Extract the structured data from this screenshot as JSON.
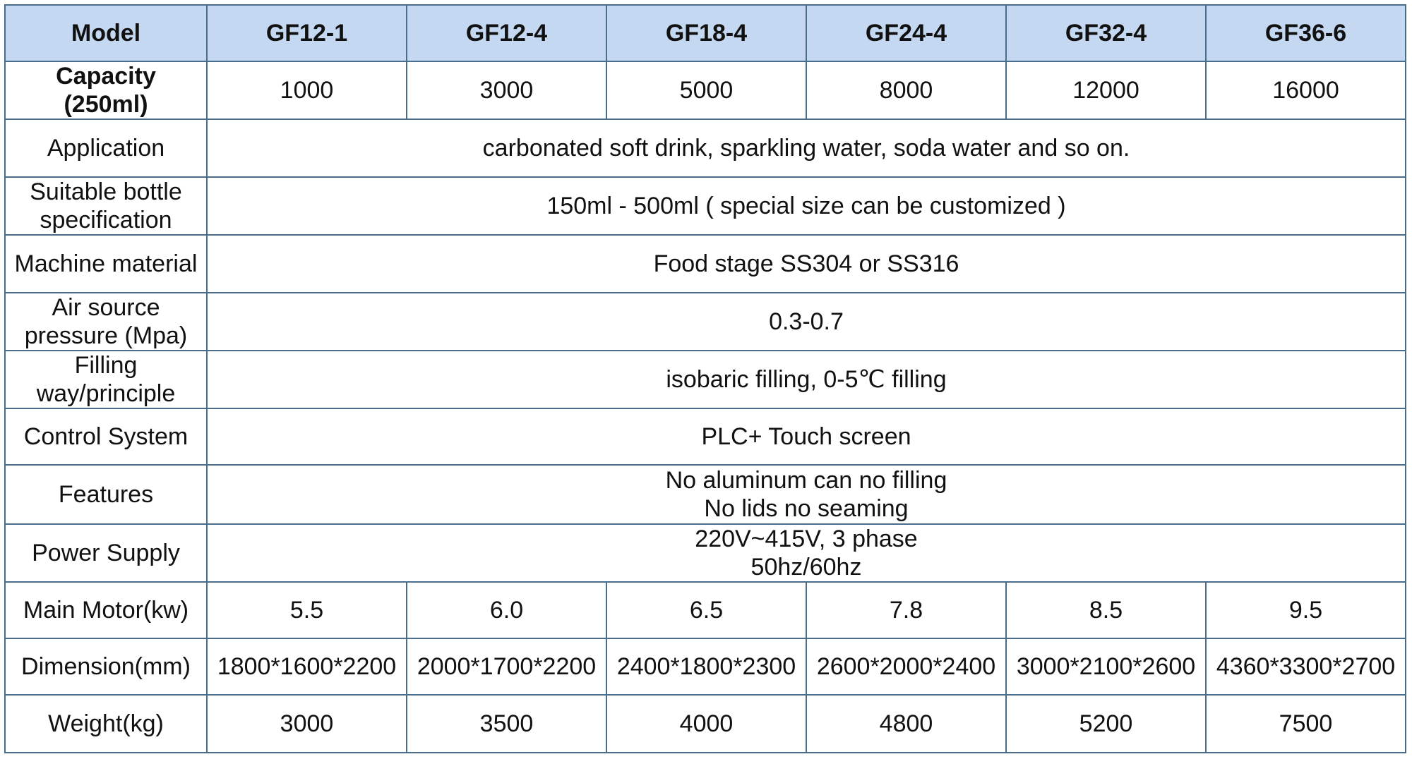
{
  "header": {
    "label": "Model",
    "models": [
      "GF12-1",
      "GF12-4",
      "GF18-4",
      "GF24-4",
      "GF32-4",
      "GF36-6"
    ]
  },
  "capacity": {
    "label_line1": "Capacity",
    "label_line2": "(250ml)",
    "values": [
      "1000",
      "3000",
      "5000",
      "8000",
      "12000",
      "16000"
    ]
  },
  "application": {
    "label": "Application",
    "value": "carbonated soft drink, sparkling water, soda water and so on."
  },
  "bottle_spec": {
    "label": "Suitable bottle specification",
    "value": "150ml - 500ml ( special size can be customized )"
  },
  "machine_material": {
    "label": "Machine material",
    "value": "Food stage SS304 or SS316"
  },
  "air_pressure": {
    "label": "Air source pressure (Mpa)",
    "value": "0.3-0.7"
  },
  "filling_way": {
    "label": "Filling way/principle",
    "value": "isobaric filling, 0-5℃ filling"
  },
  "control_system": {
    "label": "Control System",
    "value": "PLC+ Touch screen"
  },
  "features": {
    "label": "Features",
    "line1": "No aluminum can no filling",
    "line2": "No lids no seaming"
  },
  "power_supply": {
    "label": "Power Supply",
    "line1": "220V~415V, 3 phase",
    "line2": "50hz/60hz"
  },
  "main_motor": {
    "label": "Main Motor(kw)",
    "values": [
      "5.5",
      "6.0",
      "6.5",
      "7.8",
      "8.5",
      "9.5"
    ]
  },
  "dimension": {
    "label": "Dimension(mm)",
    "values": [
      "1800*1600*2200",
      "2000*1700*2200",
      "2400*1800*2300",
      "2600*2000*2400",
      "3000*2100*2600",
      "4360*3300*2700"
    ]
  },
  "weight": {
    "label": "Weight(kg)",
    "values": [
      "3000",
      "3500",
      "4000",
      "4800",
      "5200",
      "7500"
    ]
  },
  "colors": {
    "header_bg": "#c5d8f1",
    "border": "#4a6d8c"
  }
}
